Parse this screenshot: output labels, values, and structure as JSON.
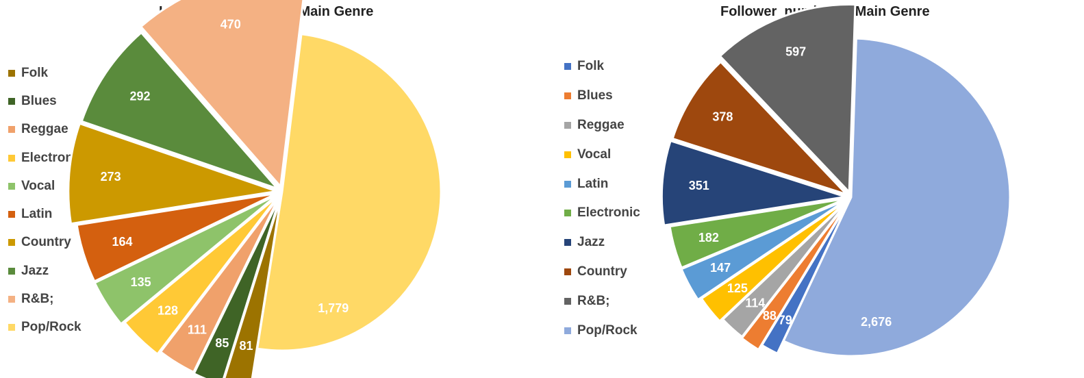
{
  "chart_data": [
    {
      "type": "pie",
      "title": "Influencer number of Main Genre",
      "categories": [
        "Folk",
        "Blues",
        "Reggae",
        "Electronic",
        "Vocal",
        "Latin",
        "Country",
        "Jazz",
        "R&B;",
        "Pop/Rock"
      ],
      "values": [
        81,
        85,
        111,
        128,
        135,
        164,
        273,
        292,
        470,
        1779
      ],
      "value_labels": [
        "81",
        "85",
        "111",
        "128",
        "135",
        "164",
        "273",
        "292",
        "470",
        "1,779"
      ],
      "colors": [
        "#9C7300",
        "#3F6426",
        "#F0A16B",
        "#FFC936",
        "#8EC36A",
        "#D4600F",
        "#CC9900",
        "#5A8B3C",
        "#F4B183",
        "#FFD966"
      ],
      "legend": "left",
      "exploded": true
    },
    {
      "type": "pie",
      "title": "Follower  number of Main Genre",
      "categories": [
        "Folk",
        "Blues",
        "Reggae",
        "Vocal",
        "Latin",
        "Electronic",
        "Jazz",
        "Country",
        "R&B;",
        "Pop/Rock"
      ],
      "values": [
        79,
        88,
        114,
        125,
        147,
        182,
        351,
        378,
        597,
        2676
      ],
      "value_labels": [
        "79",
        "88",
        "114",
        "125",
        "147",
        "182",
        "351",
        "378",
        "597",
        "2,676"
      ],
      "colors": [
        "#4472C4",
        "#ED7D31",
        "#A5A5A5",
        "#FFC000",
        "#5B9BD5",
        "#70AD47",
        "#264478",
        "#9E480E",
        "#636363",
        "#8FAADC"
      ],
      "legend": "left",
      "exploded": true
    }
  ]
}
